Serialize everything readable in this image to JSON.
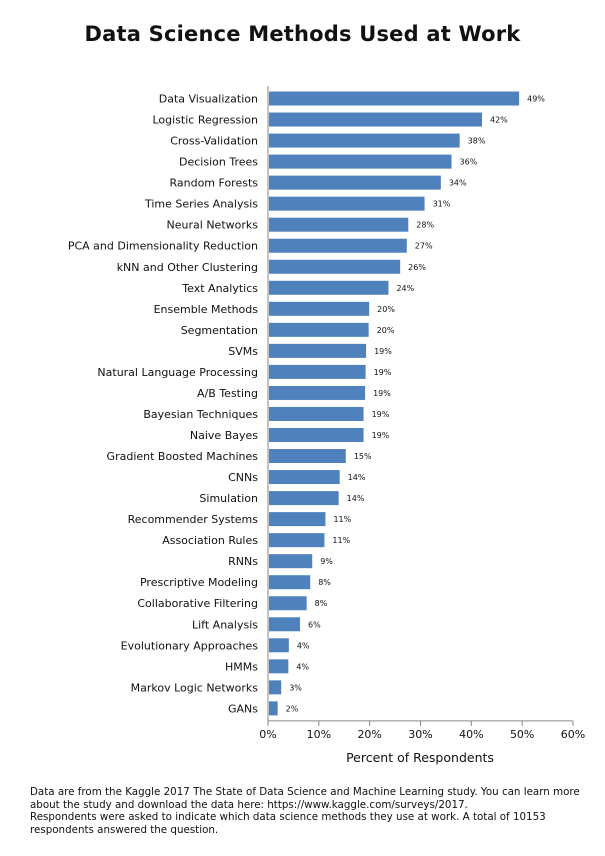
{
  "chart_data": {
    "type": "bar",
    "orientation": "horizontal",
    "title": "Data Science Methods Used at Work",
    "xlabel": "Percent of Respondents",
    "ylabel": "",
    "xlim": [
      0,
      60
    ],
    "x_ticks": [
      0,
      10,
      20,
      30,
      40,
      50,
      60
    ],
    "x_tick_labels": [
      "0%",
      "10%",
      "20%",
      "30%",
      "40%",
      "50%",
      "60%"
    ],
    "grid": false,
    "bar_color": "#4f81bd",
    "categories": [
      "Data Visualization",
      "Logistic Regression",
      "Cross-Validation",
      "Decision Trees",
      "Random Forests",
      "Time Series Analysis",
      "Neural Networks",
      "PCA and Dimensionality Reduction",
      "kNN and Other Clustering",
      "Text Analytics",
      "Ensemble Methods",
      "Segmentation",
      "SVMs",
      "Natural Language Processing",
      "A/B Testing",
      "Bayesian Techniques",
      "Naive Bayes",
      "Gradient Boosted Machines",
      "CNNs",
      "Simulation",
      "Recommender Systems",
      "Association Rules",
      "RNNs",
      "Prescriptive Modeling",
      "Collaborative Filtering",
      "Lift Analysis",
      "Evolutionary Approaches",
      "HMMs",
      "Markov Logic Networks",
      "GANs"
    ],
    "values": [
      49.4,
      42.1,
      37.7,
      36.1,
      34.0,
      30.8,
      27.6,
      27.3,
      26.0,
      23.7,
      19.9,
      19.8,
      19.3,
      19.2,
      19.1,
      18.8,
      18.8,
      15.3,
      14.1,
      13.9,
      11.3,
      11.1,
      8.7,
      8.3,
      7.6,
      6.3,
      4.1,
      4.0,
      2.6,
      1.9
    ],
    "value_labels": [
      "49%",
      "42%",
      "38%",
      "36%",
      "34%",
      "31%",
      "28%",
      "27%",
      "26%",
      "24%",
      "20%",
      "20%",
      "19%",
      "19%",
      "19%",
      "19%",
      "19%",
      "15%",
      "14%",
      "14%",
      "11%",
      "11%",
      "9%",
      "8%",
      "8%",
      "6%",
      "4%",
      "4%",
      "3%",
      "2%"
    ]
  },
  "footnote": {
    "line1": "Data are from the Kaggle 2017 The State of Data Science and Machine Learning study. You can learn more about the study and download the data here:  https://www.kaggle.com/surveys/2017.",
    "line2": "Respondents were asked  to indicate which data science methods they use at work.  A total of 10153 respondents answered the question."
  }
}
